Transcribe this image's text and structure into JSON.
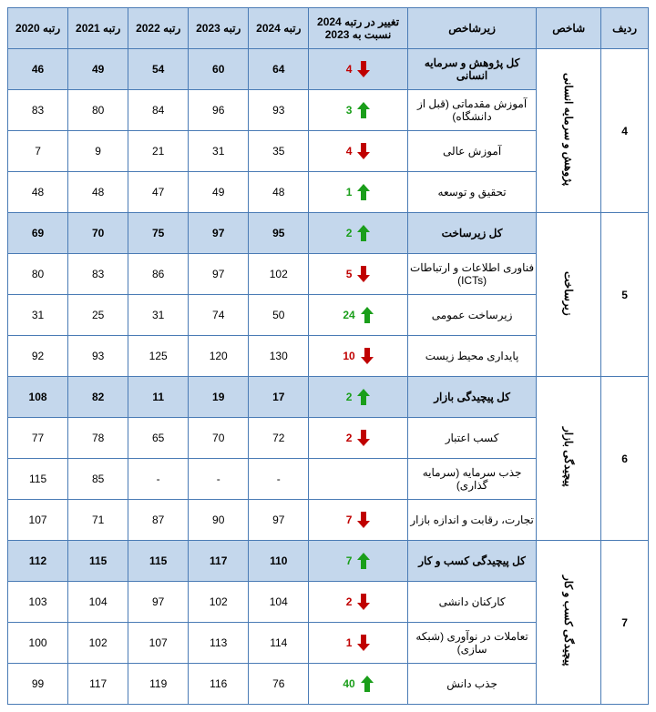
{
  "headers": {
    "row": "ردیف",
    "indicator": "شاخص",
    "subindicator": "زیرشاخص",
    "change": "تغییر در رتبه 2024 نسبت به 2023",
    "r2024": "رتبه 2024",
    "r2023": "رتبه 2023",
    "r2022": "رتبه 2022",
    "r2021": "رتبه 2021",
    "r2020": "رتبه 2020"
  },
  "colors": {
    "header_bg": "#c4d7ec",
    "border": "#4a7bb5",
    "up": "#1a9e1a",
    "down": "#c00000"
  },
  "groups": [
    {
      "rownum": "4",
      "indicator": "پژوهش و سرمایه انسانی",
      "rows": [
        {
          "sub": "کل پژوهش و سرمایه انسانی",
          "change": 4,
          "dir": "down",
          "r24": "64",
          "r23": "60",
          "r22": "54",
          "r21": "49",
          "r20": "46",
          "header": true
        },
        {
          "sub": "آموزش مقدماتی (قبل از دانشگاه)",
          "change": 3,
          "dir": "up",
          "r24": "93",
          "r23": "96",
          "r22": "84",
          "r21": "80",
          "r20": "83"
        },
        {
          "sub": "آموزش عالی",
          "change": 4,
          "dir": "down",
          "r24": "35",
          "r23": "31",
          "r22": "21",
          "r21": "9",
          "r20": "7"
        },
        {
          "sub": "تحقیق و توسعه",
          "change": 1,
          "dir": "up",
          "r24": "48",
          "r23": "49",
          "r22": "47",
          "r21": "48",
          "r20": "48"
        }
      ]
    },
    {
      "rownum": "5",
      "indicator": "زیرساخت",
      "rows": [
        {
          "sub": "کل زیرساخت",
          "change": 2,
          "dir": "up",
          "r24": "95",
          "r23": "97",
          "r22": "75",
          "r21": "70",
          "r20": "69",
          "header": true
        },
        {
          "sub": "فناوری اطلاعات و ارتباطات (ICTs)",
          "change": 5,
          "dir": "down",
          "r24": "102",
          "r23": "97",
          "r22": "86",
          "r21": "83",
          "r20": "80"
        },
        {
          "sub": "زیرساخت عمومی",
          "change": 24,
          "dir": "up",
          "r24": "50",
          "r23": "74",
          "r22": "31",
          "r21": "25",
          "r20": "31"
        },
        {
          "sub": "پایداری محیط زیست",
          "change": 10,
          "dir": "down",
          "r24": "130",
          "r23": "120",
          "r22": "125",
          "r21": "93",
          "r20": "92"
        }
      ]
    },
    {
      "rownum": "6",
      "indicator": "پیچیدگی بازار",
      "rows": [
        {
          "sub": "کل پیچیدگی بازار",
          "change": 2,
          "dir": "up",
          "r24": "17",
          "r23": "19",
          "r22": "11",
          "r21": "82",
          "r20": "108",
          "header": true
        },
        {
          "sub": "کسب اعتبار",
          "change": 2,
          "dir": "down",
          "r24": "72",
          "r23": "70",
          "r22": "65",
          "r21": "78",
          "r20": "77"
        },
        {
          "sub": "جذب سرمایه (سرمایه گذاری)",
          "change": null,
          "dir": null,
          "r24": "-",
          "r23": "-",
          "r22": "-",
          "r21": "85",
          "r20": "115"
        },
        {
          "sub": "تجارت، رقابت و اندازه بازار",
          "change": 7,
          "dir": "down",
          "r24": "97",
          "r23": "90",
          "r22": "87",
          "r21": "71",
          "r20": "107"
        }
      ]
    },
    {
      "rownum": "7",
      "indicator": "پیچیدگی کسب و کار",
      "rows": [
        {
          "sub": "کل پیچیدگی کسب و کار",
          "change": 7,
          "dir": "up",
          "r24": "110",
          "r23": "117",
          "r22": "115",
          "r21": "115",
          "r20": "112",
          "header": true
        },
        {
          "sub": "کارکنان دانشی",
          "change": 2,
          "dir": "down",
          "r24": "104",
          "r23": "102",
          "r22": "97",
          "r21": "104",
          "r20": "103"
        },
        {
          "sub": "تعاملات در نوآوری (شبکه سازی)",
          "change": 1,
          "dir": "down",
          "r24": "114",
          "r23": "113",
          "r22": "107",
          "r21": "102",
          "r20": "100"
        },
        {
          "sub": "جذب دانش",
          "change": 40,
          "dir": "up",
          "r24": "76",
          "r23": "116",
          "r22": "119",
          "r21": "117",
          "r20": "99"
        }
      ]
    }
  ]
}
